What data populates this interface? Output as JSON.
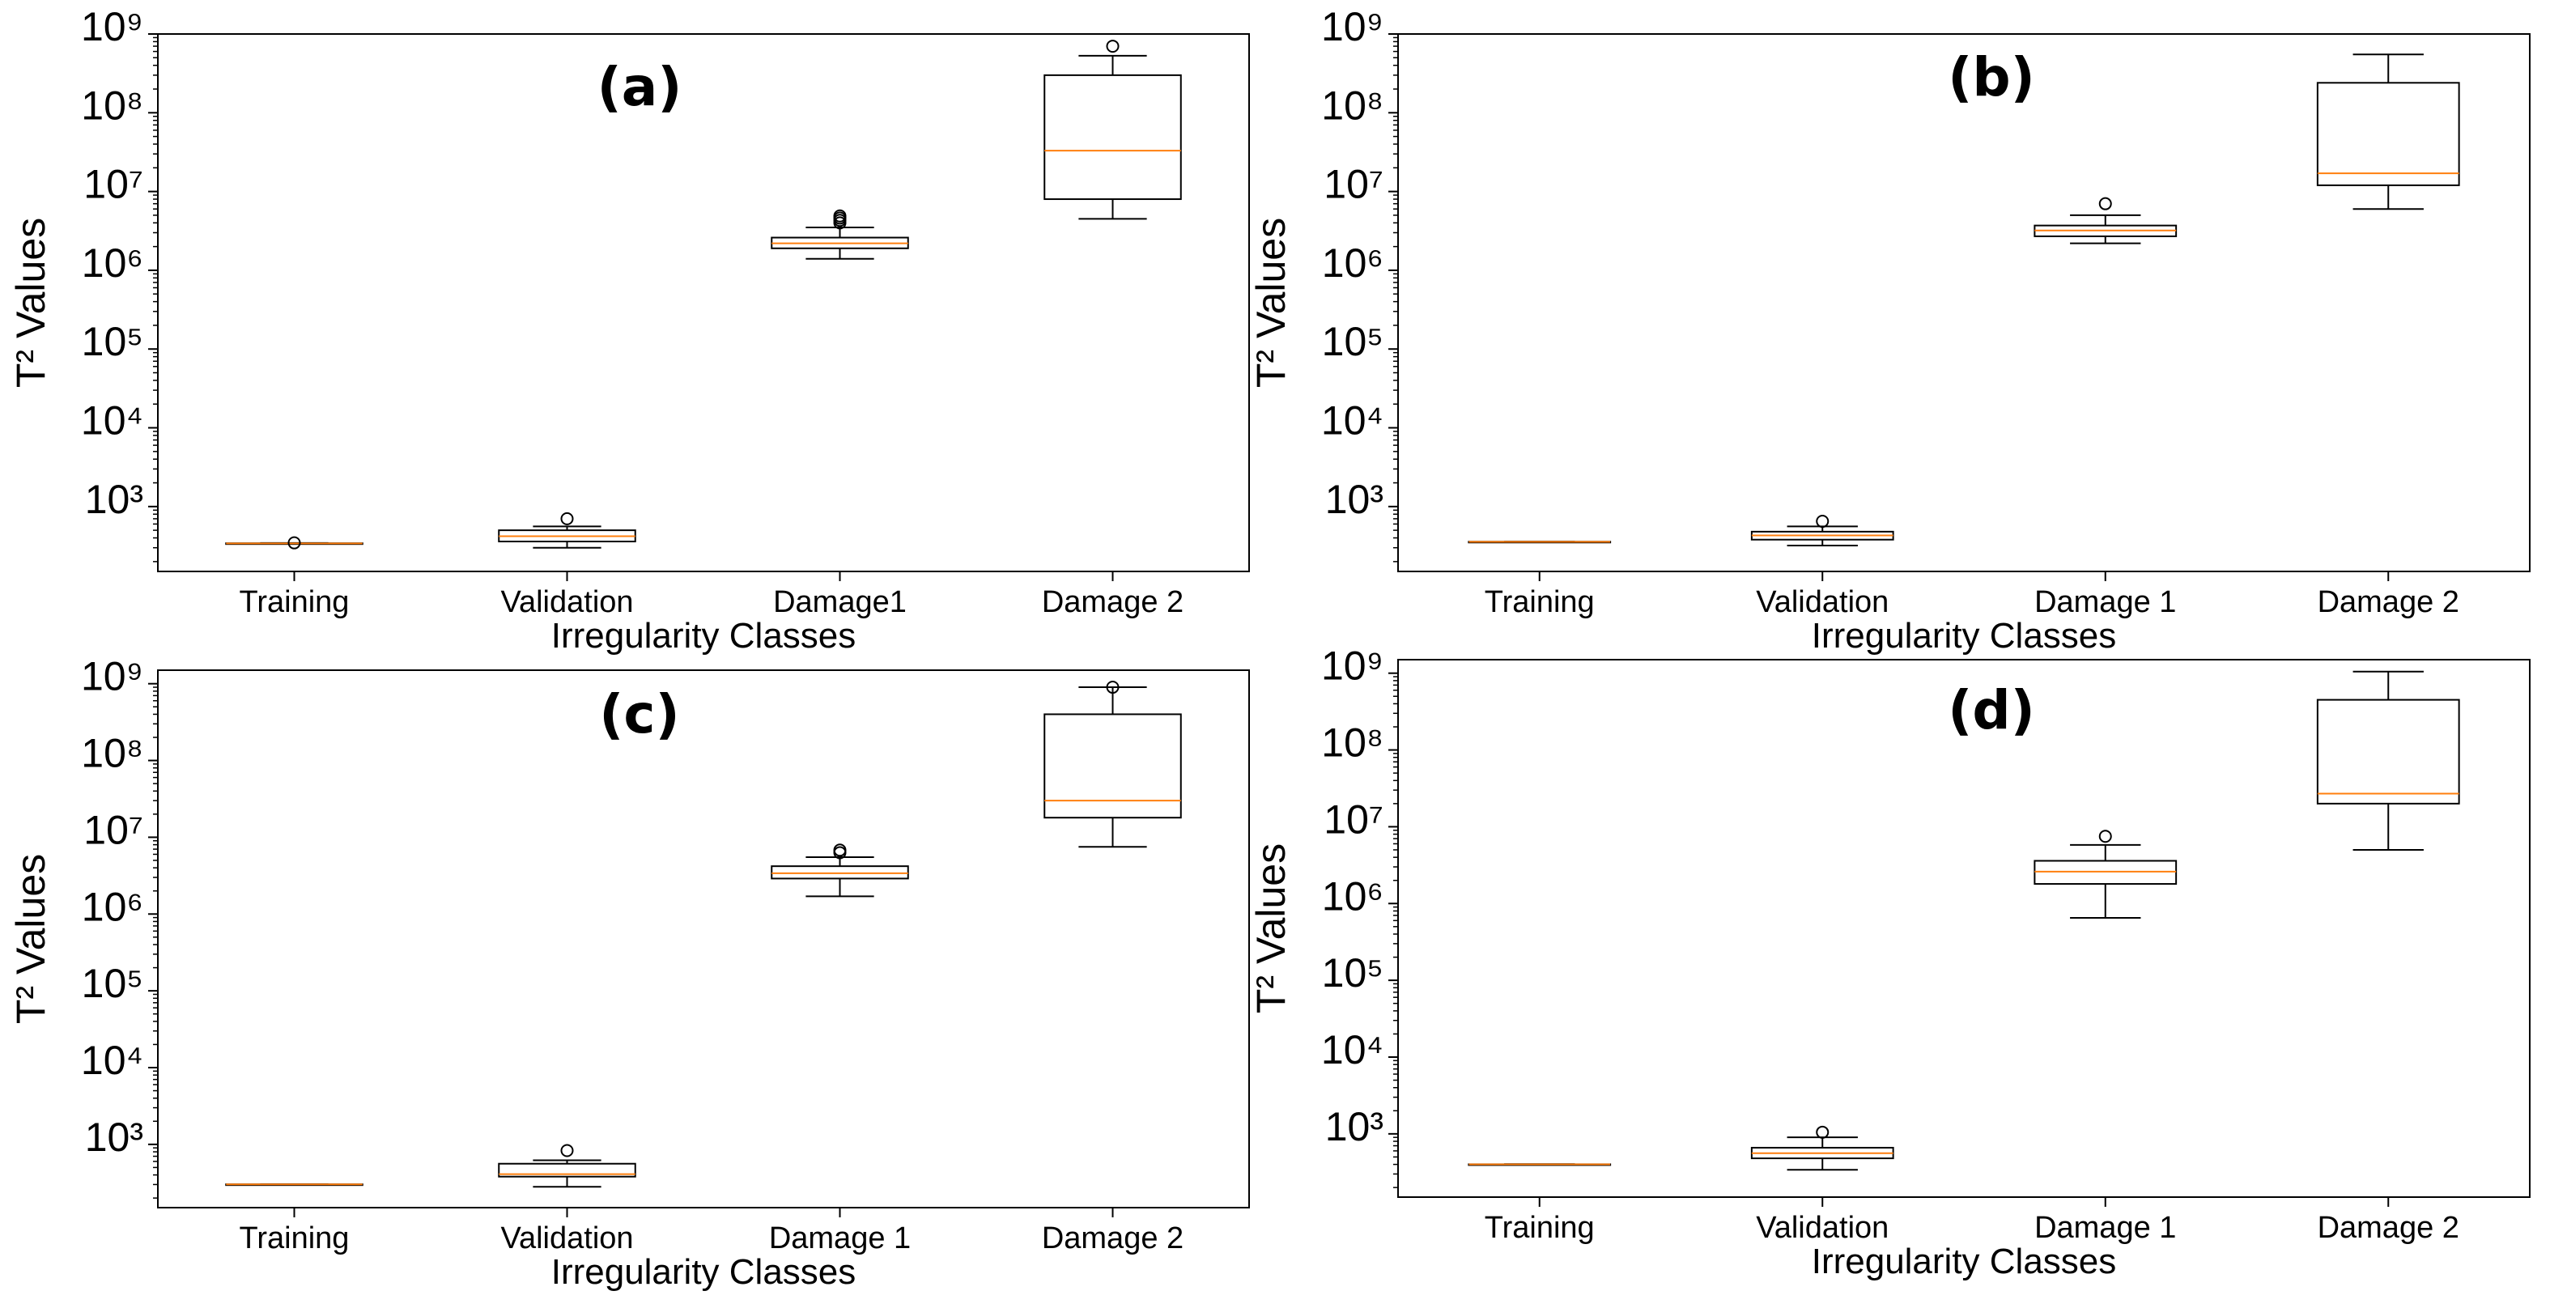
{
  "chart_data": [
    {
      "type": "box",
      "panel": "(a)",
      "categories": [
        "Training",
        "Validation",
        "Damage1",
        "Damage 2"
      ],
      "xlabel": "Irregularity Classes",
      "ylabel": "T² Values",
      "yscale": "log",
      "ylim": [
        150,
        1000000000
      ],
      "yticks": [
        "10³",
        "10⁴",
        "10⁵",
        "10⁶",
        "10⁷",
        "10⁸",
        "10⁹"
      ],
      "boxes": [
        {
          "whislo": 338,
          "q1": 338,
          "med": 340,
          "q3": 342,
          "whishi": 344,
          "fliers": [
            346
          ]
        },
        {
          "whislo": 300,
          "q1": 360,
          "med": 420,
          "q3": 500,
          "whishi": 560,
          "fliers": [
            700
          ]
        },
        {
          "whislo": 1400000,
          "q1": 1900000,
          "med": 2200000,
          "q3": 2600000,
          "whishi": 3500000,
          "fliers": [
            4000000,
            4300000,
            4600000,
            4900000
          ]
        },
        {
          "whislo": 4500000,
          "q1": 8000000,
          "med": 33000000,
          "q3": 300000000,
          "whishi": 530000000,
          "fliers": [
            700000000
          ]
        }
      ]
    },
    {
      "type": "box",
      "panel": "(b)",
      "categories": [
        "Training",
        "Validation",
        "Damage 1",
        "Damage 2"
      ],
      "xlabel": "Irregularity Classes",
      "ylabel": "T² Values",
      "yscale": "log",
      "ylim": [
        150,
        1000000000
      ],
      "yticks": [
        "10³",
        "10⁴",
        "10⁵",
        "10⁶",
        "10⁷",
        "10⁸",
        "10⁹"
      ],
      "boxes": [
        {
          "whislo": 355,
          "q1": 356,
          "med": 357,
          "q3": 358,
          "whishi": 359,
          "fliers": []
        },
        {
          "whislo": 320,
          "q1": 380,
          "med": 430,
          "q3": 480,
          "whishi": 560,
          "fliers": [
            650
          ]
        },
        {
          "whislo": 2200000,
          "q1": 2700000,
          "med": 3200000,
          "q3": 3700000,
          "whishi": 5000000,
          "fliers": [
            7000000
          ]
        },
        {
          "whislo": 6000000,
          "q1": 12000000,
          "med": 17000000,
          "q3": 240000000,
          "whishi": 550000000,
          "fliers": []
        }
      ]
    },
    {
      "type": "box",
      "panel": "(c)",
      "categories": [
        "Training",
        "Validation",
        "Damage 1",
        "Damage 2"
      ],
      "xlabel": "Irregularity Classes",
      "ylabel": "T² Values",
      "yscale": "log",
      "ylim": [
        150,
        1500000000
      ],
      "yticks": [
        "10³",
        "10⁴",
        "10⁵",
        "10⁶",
        "10⁷",
        "10⁸",
        "10⁹"
      ],
      "boxes": [
        {
          "whislo": 299,
          "q1": 300,
          "med": 301,
          "q3": 302,
          "whishi": 303,
          "fliers": []
        },
        {
          "whislo": 280,
          "q1": 380,
          "med": 410,
          "q3": 560,
          "whishi": 620,
          "fliers": [
            830
          ]
        },
        {
          "whislo": 1700000,
          "q1": 2900000,
          "med": 3400000,
          "q3": 4200000,
          "whishi": 5500000,
          "fliers": [
            6300000,
            6800000
          ]
        },
        {
          "whislo": 7500000,
          "q1": 18000000,
          "med": 30000000,
          "q3": 400000000,
          "whishi": 900000000,
          "fliers": [
            900000000
          ]
        }
      ]
    },
    {
      "type": "box",
      "panel": "(d)",
      "categories": [
        "Training",
        "Validation",
        "Damage 1",
        "Damage 2"
      ],
      "xlabel": "Irregularity Classes",
      "ylabel": "T² Values",
      "yscale": "log",
      "ylim": [
        150,
        1500000000
      ],
      "yticks": [
        "10³",
        "10⁴",
        "10⁵",
        "10⁶",
        "10⁷",
        "10⁸",
        "10⁹"
      ],
      "boxes": [
        {
          "whislo": 399,
          "q1": 400,
          "med": 401,
          "q3": 402,
          "whishi": 403,
          "fliers": []
        },
        {
          "whislo": 340,
          "q1": 480,
          "med": 560,
          "q3": 660,
          "whishi": 900,
          "fliers": [
            1050
          ]
        },
        {
          "whislo": 650000,
          "q1": 1800000,
          "med": 2600000,
          "q3": 3600000,
          "whishi": 5800000,
          "fliers": [
            7500000
          ]
        },
        {
          "whislo": 5000000,
          "q1": 20000000,
          "med": 27000000,
          "q3": 450000000,
          "whishi": 1050000000,
          "fliers": []
        }
      ]
    }
  ],
  "colors": {
    "box": "#000000",
    "median": "#ff7f0e",
    "background": "#ffffff"
  }
}
